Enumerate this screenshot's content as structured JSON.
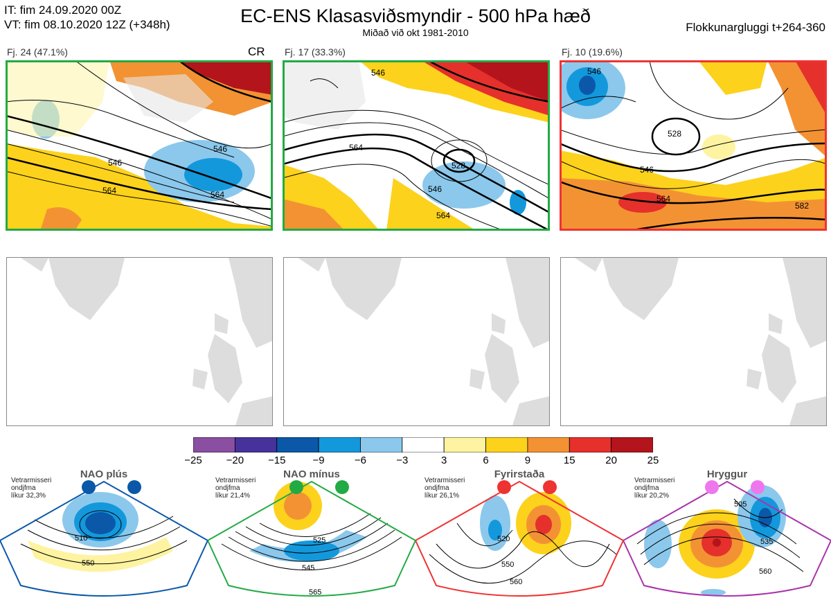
{
  "header": {
    "it_line": "IT: fim 24.09.2020 00Z",
    "vt_line": "VT: fim 08.10.2020 12Z  (+348h)",
    "title": "EC-ENS Klasasviðsmyndir - 500 hPa hæð",
    "subtitle": "Miðað við okt 1981-2010",
    "window": "Flokkunargluggi t+264-360"
  },
  "clusters": [
    {
      "label": "Fj. 24 (47.1%)",
      "tag": "CR",
      "frame_color": "#22aa44",
      "contours": [
        "546",
        "564",
        "546",
        "564"
      ]
    },
    {
      "label": "Fj. 17 (33.3%)",
      "tag": "",
      "frame_color": "#22aa44",
      "contours": [
        "546",
        "564",
        "528",
        "546",
        "564"
      ]
    },
    {
      "label": "Fj. 10 (19.6%)",
      "tag": "",
      "frame_color": "#ee3333",
      "contours": [
        "546",
        "528",
        "546",
        "564",
        "582"
      ]
    }
  ],
  "colorbar": {
    "ticks": [
      "−25",
      "−20",
      "−15",
      "−9",
      "−6",
      "−3",
      "3",
      "6",
      "9",
      "15",
      "20",
      "25"
    ],
    "colors": [
      "#8a4fa0",
      "#46329a",
      "#0b58a8",
      "#1398dc",
      "#8bc8ec",
      "#ffffff",
      "#fef3a0",
      "#fcd21c",
      "#f39233",
      "#e5302c",
      "#b4141c"
    ]
  },
  "regimes": [
    {
      "name": "NAO plús",
      "desc": [
        "Vetrarmisseri",
        "ondjfma",
        "líkur 32,3%"
      ],
      "color": "#0b58a8",
      "contours": [
        "510",
        "550"
      ]
    },
    {
      "name": "NAO mínus",
      "desc": [
        "Vetrarmisseri",
        "ondjfma",
        "líkur 21,4%"
      ],
      "color": "#22aa44",
      "contours": [
        "525",
        "545",
        "565"
      ]
    },
    {
      "name": "Fyrirstaða",
      "desc": [
        "Vetrarmisseri",
        "ondjfma",
        "líkur 26,1%"
      ],
      "color": "#ee3333",
      "contours": [
        "520",
        "550",
        "560"
      ]
    },
    {
      "name": "Hryggur",
      "desc": [
        "Vetrarmisseri",
        "ondjfma",
        "líkur 20,2%"
      ],
      "color": "#ee77ee",
      "contours": [
        "505",
        "535",
        "560"
      ]
    }
  ]
}
